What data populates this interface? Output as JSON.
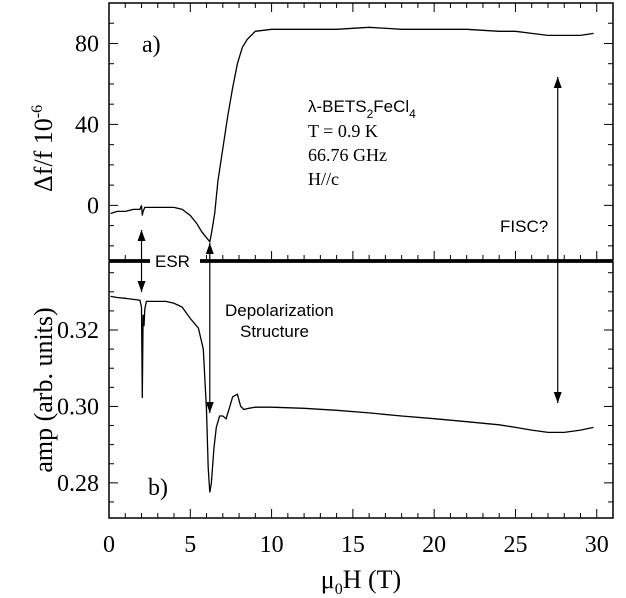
{
  "chart_data": [
    {
      "type": "line",
      "panel_label": "a)",
      "ylabel": "Δf/f 10",
      "ylabel_exponent": "-6",
      "xlim": [
        0,
        31
      ],
      "ylim": [
        -27,
        100
      ],
      "yticks": [
        0,
        40,
        80
      ],
      "ytick_labels": [
        "0",
        "40",
        "80"
      ],
      "annotations": {
        "compound_prefix": "λ-BETS",
        "compound_sub1": "2",
        "compound_mid": "FeCl",
        "compound_sub2": "4",
        "temperature": "T = 0.9 K",
        "frequency": "66.76 GHz",
        "field_dir": "H//c"
      },
      "series": [
        {
          "x": [
            0.1,
            0.5,
            1.0,
            1.5,
            1.9,
            2.0,
            2.05,
            2.1,
            2.2,
            2.5,
            3.0,
            3.5,
            4.0,
            4.5,
            5.0,
            5.4,
            5.7,
            6.0,
            6.2,
            6.3,
            6.5,
            6.7,
            7.0,
            7.3,
            7.6,
            7.9,
            8.2,
            8.5,
            9.0,
            10,
            12,
            14,
            16,
            18,
            20,
            22,
            24,
            25,
            26,
            27,
            28,
            29,
            29.8
          ],
          "y": [
            -4,
            -3,
            -3,
            -2,
            -2,
            0,
            -5,
            -3,
            -1,
            -1,
            -1,
            -1,
            -1,
            -2,
            -5,
            -9,
            -13,
            -16,
            -18,
            -14,
            -4,
            12,
            28,
            44,
            58,
            70,
            78,
            82,
            86,
            87,
            87,
            87,
            88,
            87,
            87,
            87,
            86,
            86,
            85,
            84,
            84,
            84,
            85
          ]
        }
      ]
    },
    {
      "type": "line",
      "panel_label": "b)",
      "ylabel": "amp (arb. units)",
      "xlabel": "μ",
      "xlabel_sub": "0",
      "xlabel_rest": "H (T)",
      "xlim": [
        0,
        31
      ],
      "xticks": [
        0,
        5,
        10,
        15,
        20,
        25,
        30
      ],
      "xtick_labels": [
        "0",
        "5",
        "10",
        "15",
        "20",
        "25",
        "30"
      ],
      "ylim": [
        0.2708,
        0.3378
      ],
      "yticks": [
        0.28,
        0.3,
        0.32
      ],
      "ytick_labels": [
        "0.28",
        "0.30",
        "0.32"
      ],
      "series": [
        {
          "x": [
            0.1,
            0.5,
            1.0,
            1.5,
            1.9,
            2.0,
            2.05,
            2.1,
            2.15,
            2.2,
            2.3,
            2.5,
            3.0,
            3.5,
            4.0,
            4.5,
            5.0,
            5.5,
            5.8,
            6.0,
            6.1,
            6.2,
            6.3,
            6.45,
            6.6,
            6.8,
            7.0,
            7.2,
            7.4,
            7.6,
            7.9,
            8.1,
            8.3,
            8.6,
            9.0,
            10,
            12,
            14,
            16,
            18,
            20,
            22,
            24,
            25,
            26,
            27,
            28,
            29,
            29.8
          ],
          "y": [
            0.3288,
            0.3285,
            0.3283,
            0.328,
            0.3278,
            0.326,
            0.3022,
            0.324,
            0.321,
            0.3255,
            0.3275,
            0.3275,
            0.3275,
            0.3275,
            0.327,
            0.326,
            0.323,
            0.3205,
            0.315,
            0.299,
            0.284,
            0.2775,
            0.28,
            0.289,
            0.2945,
            0.2975,
            0.2975,
            0.2968,
            0.2995,
            0.3025,
            0.3032,
            0.3,
            0.2992,
            0.2995,
            0.2998,
            0.2998,
            0.2995,
            0.299,
            0.2983,
            0.2975,
            0.2968,
            0.296,
            0.2952,
            0.2945,
            0.2938,
            0.2932,
            0.2932,
            0.2938,
            0.2945
          ]
        }
      ]
    }
  ],
  "annotations": {
    "esr": {
      "text": "ESR",
      "x": 2.0
    },
    "depolarization": {
      "line1": "Depolarization",
      "line2": "Structure",
      "x": 6.2
    },
    "fisc": {
      "text": "FISC?",
      "x": 27.6
    }
  }
}
